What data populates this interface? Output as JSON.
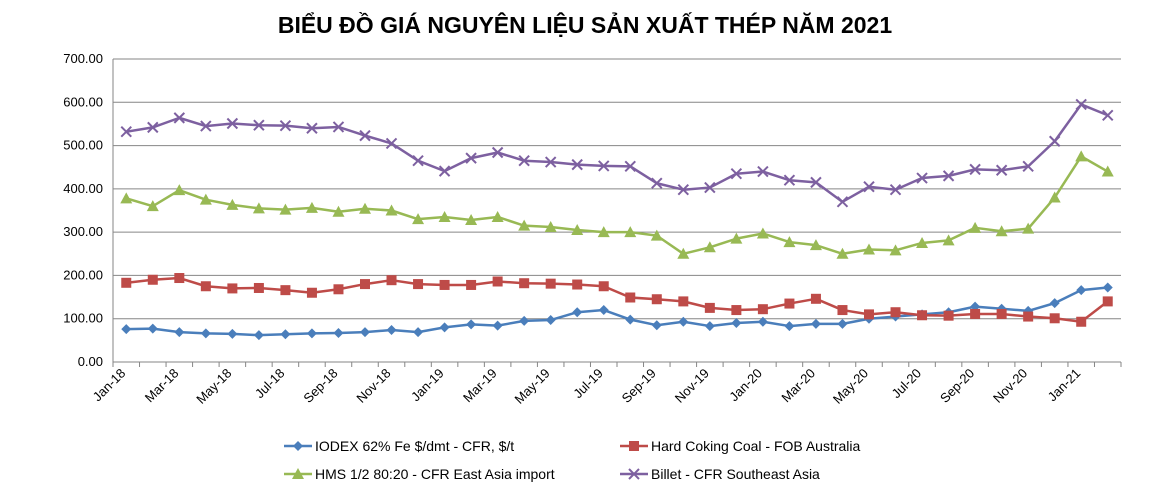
{
  "chart_data": {
    "type": "line",
    "title": "BIỂU ĐỒ GIÁ NGUYÊN LIỆU SẢN XUẤT THÉP NĂM 2021",
    "xlabel": "",
    "ylabel": "",
    "ylim": [
      0,
      700
    ],
    "yticks": [
      "0.00",
      "100.00",
      "200.00",
      "300.00",
      "400.00",
      "500.00",
      "600.00",
      "700.00"
    ],
    "grid": "horizontal",
    "legend_position": "bottom",
    "x": [
      "Jan-18",
      "Feb-18",
      "Mar-18",
      "Apr-18",
      "May-18",
      "Jun-18",
      "Jul-18",
      "Aug-18",
      "Sep-18",
      "Oct-18",
      "Nov-18",
      "Dec-18",
      "Jan-19",
      "Feb-19",
      "Mar-19",
      "Apr-19",
      "May-19",
      "Jun-19",
      "Jul-19",
      "Aug-19",
      "Sep-19",
      "Oct-19",
      "Nov-19",
      "Dec-19",
      "Jan-20",
      "Feb-20",
      "Mar-20",
      "Apr-20",
      "May-20",
      "Jun-20",
      "Jul-20",
      "Aug-20",
      "Sep-20",
      "Oct-20",
      "Nov-20",
      "Dec-20",
      "Jan-21",
      "Feb-21"
    ],
    "xtick_labels": [
      "Jan-18",
      "Mar-18",
      "May-18",
      "Jul-18",
      "Sep-18",
      "Nov-18",
      "Jan-19",
      "Mar-19",
      "May-19",
      "Jul-19",
      "Sep-19",
      "Nov-19",
      "Jan-20",
      "Mar-20",
      "May-20",
      "Jul-20",
      "Sep-20",
      "Nov-20",
      "Jan-21"
    ],
    "series": [
      {
        "name": "IODEX 62% Fe $/dmt - CFR, $/t",
        "color": "#4a7ebb",
        "marker": "diamond",
        "values": [
          76,
          77,
          69,
          66,
          65,
          62,
          64,
          66,
          67,
          69,
          74,
          69,
          80,
          87,
          84,
          95,
          97,
          115,
          120,
          98,
          85,
          93,
          83,
          90,
          93,
          83,
          88,
          88,
          100,
          105,
          110,
          115,
          128,
          123,
          118,
          136,
          166,
          172
        ]
      },
      {
        "name": "Hard Coking Coal - FOB Australia",
        "color": "#be4b48",
        "marker": "square",
        "values": [
          183,
          190,
          194,
          175,
          170,
          171,
          166,
          160,
          168,
          180,
          189,
          180,
          178,
          178,
          186,
          182,
          181,
          179,
          175,
          149,
          145,
          140,
          125,
          120,
          122,
          135,
          146,
          120,
          110,
          115,
          108,
          107,
          111,
          111,
          105,
          101,
          93,
          140
        ]
      },
      {
        "name": "HMS 1/2 80:20 - CFR East Asia import",
        "color": "#98b954",
        "marker": "triangle",
        "values": [
          378,
          360,
          397,
          375,
          363,
          355,
          352,
          356,
          347,
          354,
          350,
          330,
          335,
          328,
          335,
          315,
          312,
          305,
          300,
          300,
          292,
          250,
          265,
          285,
          297,
          277,
          270,
          250,
          260,
          258,
          275,
          281,
          310,
          302,
          308,
          380,
          475,
          440
        ]
      },
      {
        "name": "Billet - CFR Southeast Asia",
        "color": "#7d60a0",
        "marker": "x",
        "values": [
          532,
          542,
          564,
          545,
          551,
          547,
          546,
          540,
          543,
          523,
          505,
          465,
          441,
          471,
          484,
          465,
          462,
          456,
          453,
          452,
          413,
          398,
          403,
          435,
          440,
          420,
          415,
          370,
          405,
          398,
          425,
          430,
          445,
          443,
          452,
          510,
          595,
          570
        ]
      }
    ]
  }
}
